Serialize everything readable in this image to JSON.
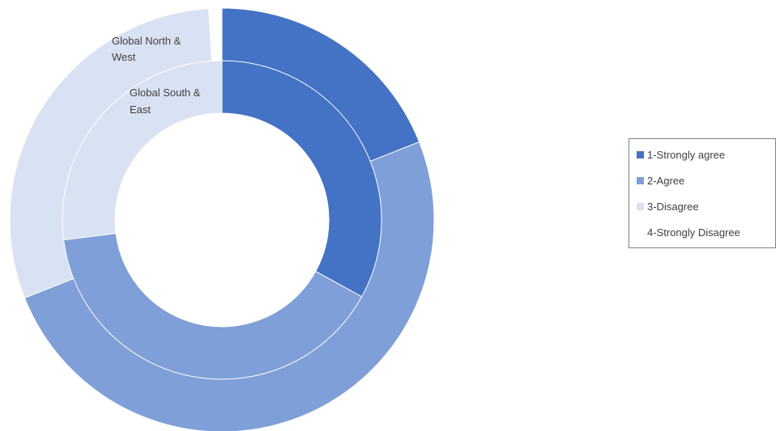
{
  "chart_data": {
    "type": "doughnut",
    "legend_position": "right",
    "categories": [
      "1-Strongly agree",
      "2-Agree",
      "3-Disagree",
      "4-Strongly Disagree"
    ],
    "colors": [
      "#4472C4",
      "#7F9FD8",
      "#D9E2F3",
      "#FFFFFF"
    ],
    "series": [
      {
        "name": "Global South & East",
        "ring": "inner",
        "values": [
          33,
          40,
          27,
          0
        ]
      },
      {
        "name": "Global North & West",
        "ring": "outer",
        "values": [
          19,
          50,
          30,
          1
        ]
      }
    ]
  }
}
